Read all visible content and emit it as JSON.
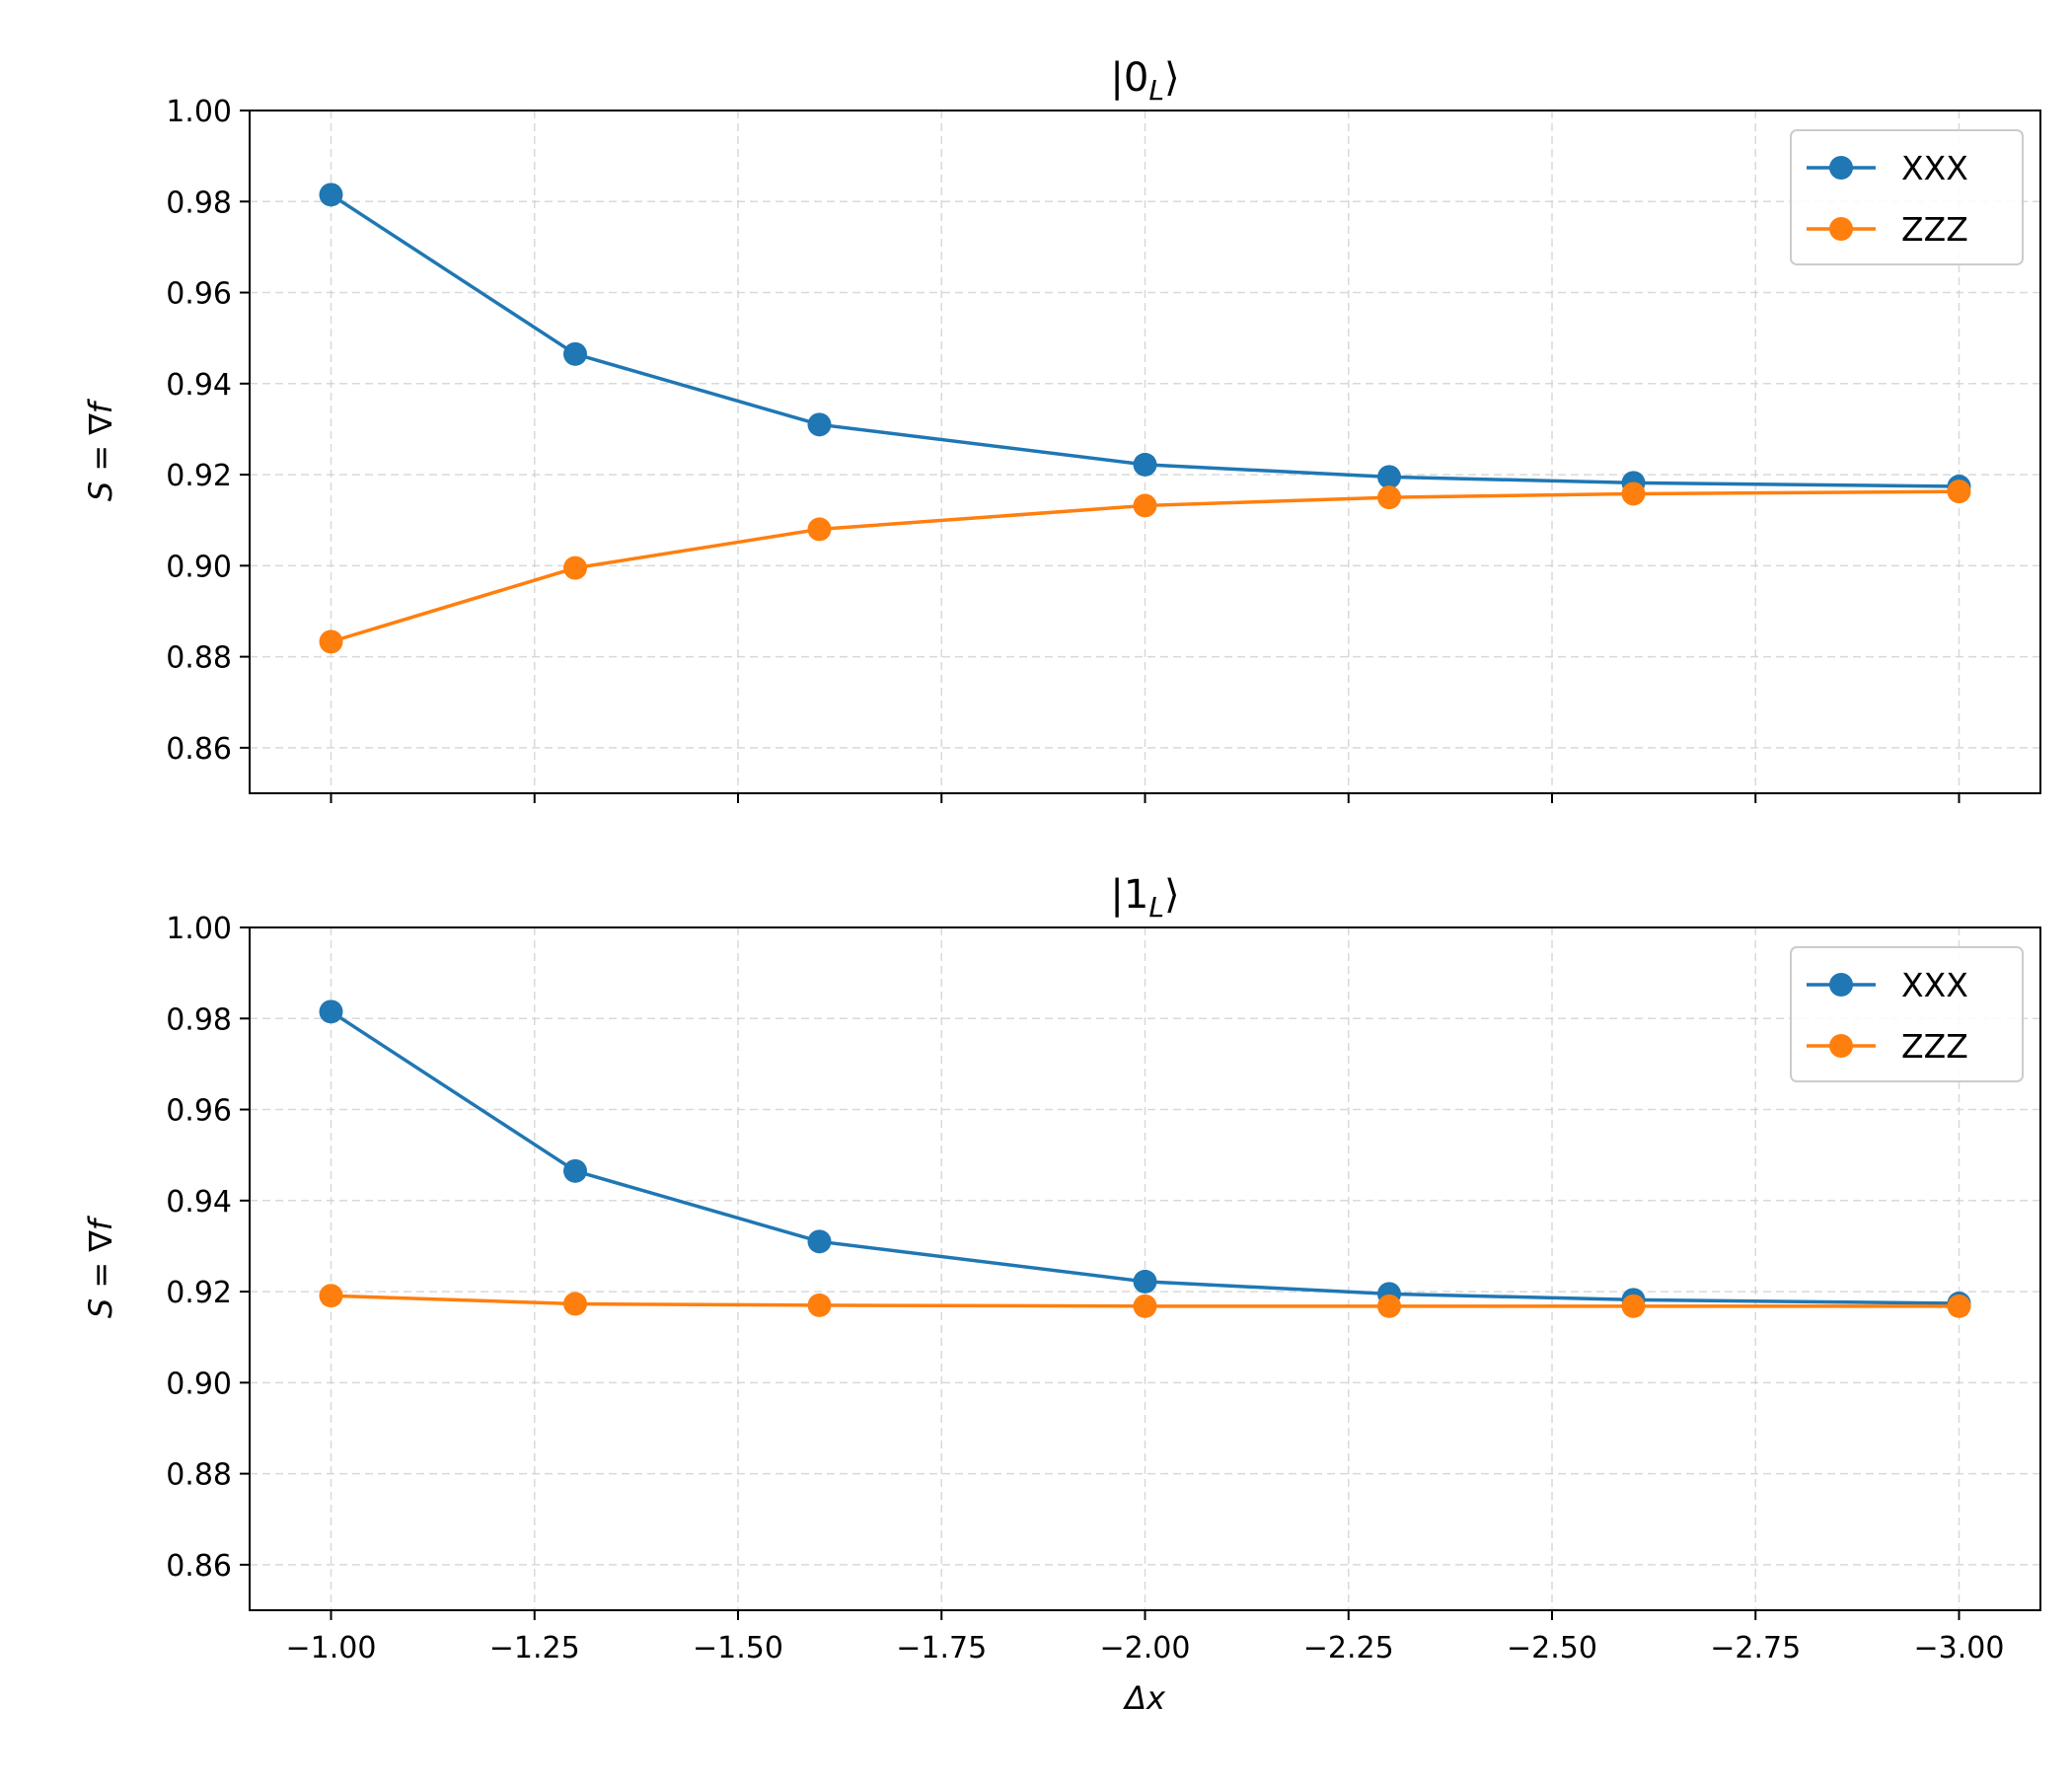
{
  "chart_data": [
    {
      "type": "line",
      "title": "|0_L⟩",
      "title_main": "|0",
      "title_sub": "L",
      "title_close": "⟩",
      "xlabel": "",
      "ylabel": "S = ∇f",
      "ylabel_main": "S = ∇f",
      "x": [
        -1.0,
        -1.3,
        -1.6,
        -2.0,
        -2.3,
        -2.6,
        -3.0
      ],
      "xlim": [
        -0.9,
        -3.1
      ],
      "ylim": [
        0.85,
        1.0
      ],
      "yticks": [
        0.86,
        0.88,
        0.9,
        0.92,
        0.94,
        0.96,
        0.98,
        1.0
      ],
      "ytick_labels": [
        "0.86",
        "0.88",
        "0.90",
        "0.92",
        "0.94",
        "0.96",
        "0.98",
        "1.00"
      ],
      "xticks": [
        -1.0,
        -1.25,
        -1.5,
        -1.75,
        -2.0,
        -2.25,
        -2.5,
        -2.75,
        -3.0
      ],
      "show_xtick_labels": false,
      "grid": true,
      "legend_position": "top-right",
      "series": [
        {
          "name": "XXX",
          "color": "#1f77b4",
          "values": [
            0.9815,
            0.9465,
            0.931,
            0.9222,
            0.9195,
            0.9182,
            0.9174
          ]
        },
        {
          "name": "ZZZ",
          "color": "#ff7f0e",
          "values": [
            0.8833,
            0.8995,
            0.908,
            0.9132,
            0.915,
            0.9158,
            0.9163
          ]
        }
      ]
    },
    {
      "type": "line",
      "title": "|1_L⟩",
      "title_main": "|1",
      "title_sub": "L",
      "title_close": "⟩",
      "xlabel": "Δx",
      "ylabel": "S = ∇f",
      "ylabel_main": "S = ∇f",
      "x": [
        -1.0,
        -1.3,
        -1.6,
        -2.0,
        -2.3,
        -2.6,
        -3.0
      ],
      "xlim": [
        -0.9,
        -3.1
      ],
      "ylim": [
        0.85,
        1.0
      ],
      "yticks": [
        0.86,
        0.88,
        0.9,
        0.92,
        0.94,
        0.96,
        0.98,
        1.0
      ],
      "ytick_labels": [
        "0.86",
        "0.88",
        "0.90",
        "0.92",
        "0.94",
        "0.96",
        "0.98",
        "1.00"
      ],
      "xticks": [
        -1.0,
        -1.25,
        -1.5,
        -1.75,
        -2.0,
        -2.25,
        -2.5,
        -2.75,
        -3.0
      ],
      "xtick_labels": [
        "−1.00",
        "−1.25",
        "−1.50",
        "−1.75",
        "−2.00",
        "−2.25",
        "−2.50",
        "−2.75",
        "−3.00"
      ],
      "show_xtick_labels": true,
      "grid": true,
      "legend_position": "top-right",
      "series": [
        {
          "name": "XXX",
          "color": "#1f77b4",
          "values": [
            0.9815,
            0.9465,
            0.931,
            0.9222,
            0.9195,
            0.9182,
            0.9174
          ]
        },
        {
          "name": "ZZZ",
          "color": "#ff7f0e",
          "values": [
            0.9191,
            0.9173,
            0.917,
            0.9168,
            0.9168,
            0.9168,
            0.9168
          ]
        }
      ]
    }
  ]
}
